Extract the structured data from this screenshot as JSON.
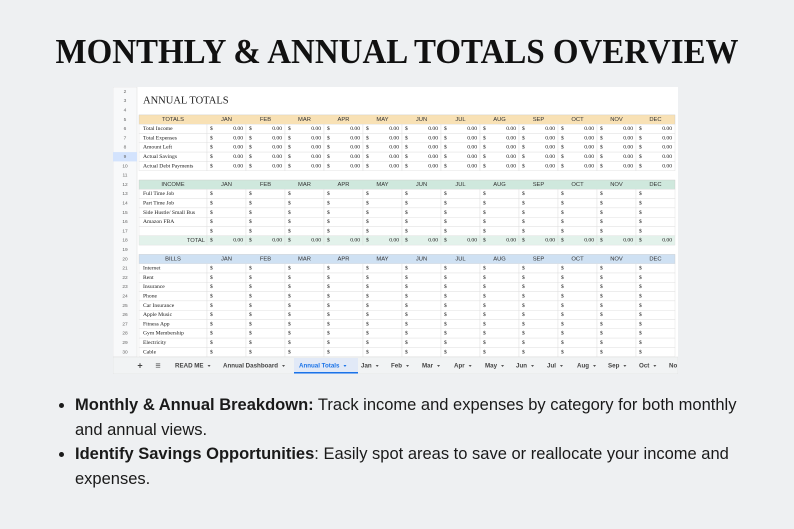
{
  "title": "MONTHLY & ANNUAL TOTALS OVERVIEW",
  "sheet": {
    "title": "ANNUAL  TOTALS",
    "currency": "$",
    "months": [
      "JAN",
      "FEB",
      "MAR",
      "APR",
      "MAY",
      "JUN",
      "JUL",
      "AUG",
      "SEP",
      "OCT",
      "NOV",
      "DEC"
    ],
    "row_numbers": [
      2,
      3,
      4,
      5,
      6,
      7,
      8,
      9,
      10,
      11,
      12,
      13,
      14,
      15,
      16,
      17,
      18,
      19,
      20,
      21,
      22,
      23,
      24,
      25,
      26,
      27,
      28,
      29,
      30
    ],
    "totals": {
      "header": "TOTALS",
      "rows": [
        {
          "label": "Total Income",
          "values": [
            "0.00",
            "0.00",
            "0.00",
            "0.00",
            "0.00",
            "0.00",
            "0.00",
            "0.00",
            "0.00",
            "0.00",
            "0.00",
            "0.00"
          ]
        },
        {
          "label": "Total Expenses",
          "values": [
            "0.00",
            "0.00",
            "0.00",
            "0.00",
            "0.00",
            "0.00",
            "0.00",
            "0.00",
            "0.00",
            "0.00",
            "0.00",
            "0.00"
          ]
        },
        {
          "label": "Amount Left",
          "values": [
            "0.00",
            "0.00",
            "0.00",
            "0.00",
            "0.00",
            "0.00",
            "0.00",
            "0.00",
            "0.00",
            "0.00",
            "0.00",
            "0.00"
          ]
        },
        {
          "label": "Actual Savings",
          "values": [
            "0.00",
            "0.00",
            "0.00",
            "0.00",
            "0.00",
            "0.00",
            "0.00",
            "0.00",
            "0.00",
            "0.00",
            "0.00",
            "0.00"
          ]
        },
        {
          "label": "Actual Debt Payments",
          "values": [
            "0.00",
            "0.00",
            "0.00",
            "0.00",
            "0.00",
            "0.00",
            "0.00",
            "0.00",
            "0.00",
            "0.00",
            "0.00",
            "0.00"
          ]
        }
      ]
    },
    "income": {
      "header": "INCOME",
      "rows": [
        "Full Time Job",
        "Part Time Job",
        "Side Hustle/ Small Bus",
        "Amazon FBA"
      ],
      "total": {
        "label": "TOTAL",
        "values": [
          "0.00",
          "0.00",
          "0.00",
          "0.00",
          "0.00",
          "0.00",
          "0.00",
          "0.00",
          "0.00",
          "0.00",
          "0.00",
          "0.00"
        ]
      }
    },
    "bills": {
      "header": "BILLS",
      "rows": [
        "Internet",
        "Rent",
        "Insurance",
        "Phone",
        "Car Insurance",
        "Apple Music",
        "Fitness App",
        "Gym Membership",
        "Electricity",
        "Cable"
      ]
    }
  },
  "tabs": {
    "add": "+",
    "menu": "≡",
    "active": 2,
    "items": [
      "READ ME",
      "Annual Dashboard",
      "Annual Totals",
      "Jan",
      "Feb",
      "Mar",
      "Apr",
      "May",
      "Jun",
      "Jul",
      "Aug",
      "Sep",
      "Oct",
      "No"
    ]
  },
  "bullets": [
    {
      "bold": "Monthly & Annual Breakdown:",
      "text": " Track income and expenses by category for both monthly and annual views."
    },
    {
      "bold": "Identify Savings Opportunities",
      "text": ": Easily spot areas to save or reallocate your income and expenses."
    }
  ]
}
